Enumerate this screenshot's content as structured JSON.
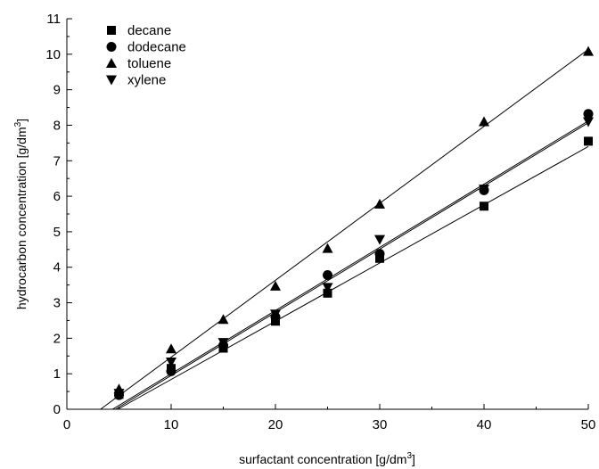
{
  "chart_data": {
    "type": "scatter",
    "title": "",
    "xlabel": "surfactant concentration [g/dm",
    "xlabel_sup": "3",
    "xlabel_end": "]",
    "ylabel": "hydrocarbon concentration [g/dm",
    "ylabel_sup": "3",
    "ylabel_end": "]",
    "xlim": [
      0,
      50
    ],
    "ylim": [
      0,
      11
    ],
    "xticks": [
      0,
      10,
      20,
      30,
      40,
      50
    ],
    "xtick_labels": [
      "0",
      "10",
      "20",
      "30",
      "40",
      "50"
    ],
    "yticks": [
      0,
      1,
      2,
      3,
      4,
      5,
      6,
      7,
      8,
      9,
      10,
      11
    ],
    "ytick_labels": [
      "0",
      "1",
      "2",
      "3",
      "4",
      "5",
      "6",
      "7",
      "8",
      "9",
      "10",
      "11"
    ],
    "grid": false,
    "legend_position": "top-left",
    "x": [
      5,
      10,
      15,
      20,
      25,
      30,
      40,
      50
    ],
    "series": [
      {
        "name": "decane",
        "marker": "square",
        "values": [
          0.42,
          1.15,
          1.72,
          2.48,
          3.27,
          4.25,
          5.72,
          7.55
        ],
        "fit": {
          "slope": 0.164,
          "intercept": -0.8
        }
      },
      {
        "name": "dodecane",
        "marker": "circle",
        "values": [
          0.4,
          1.07,
          1.8,
          2.6,
          3.78,
          4.38,
          6.17,
          8.32
        ],
        "fit": {
          "slope": 0.178,
          "intercept": -0.83
        }
      },
      {
        "name": "toluene",
        "marker": "triangle-up",
        "values": [
          0.57,
          1.7,
          2.53,
          3.47,
          4.53,
          5.78,
          8.1,
          10.08
        ],
        "fit": {
          "slope": 0.2167,
          "intercept": -0.7
        }
      },
      {
        "name": "xylene",
        "marker": "triangle-down",
        "values": [
          0.45,
          1.33,
          1.88,
          2.68,
          3.43,
          4.78,
          6.2,
          8.1
        ],
        "fit": {
          "slope": 0.178,
          "intercept": -0.78
        }
      }
    ]
  }
}
